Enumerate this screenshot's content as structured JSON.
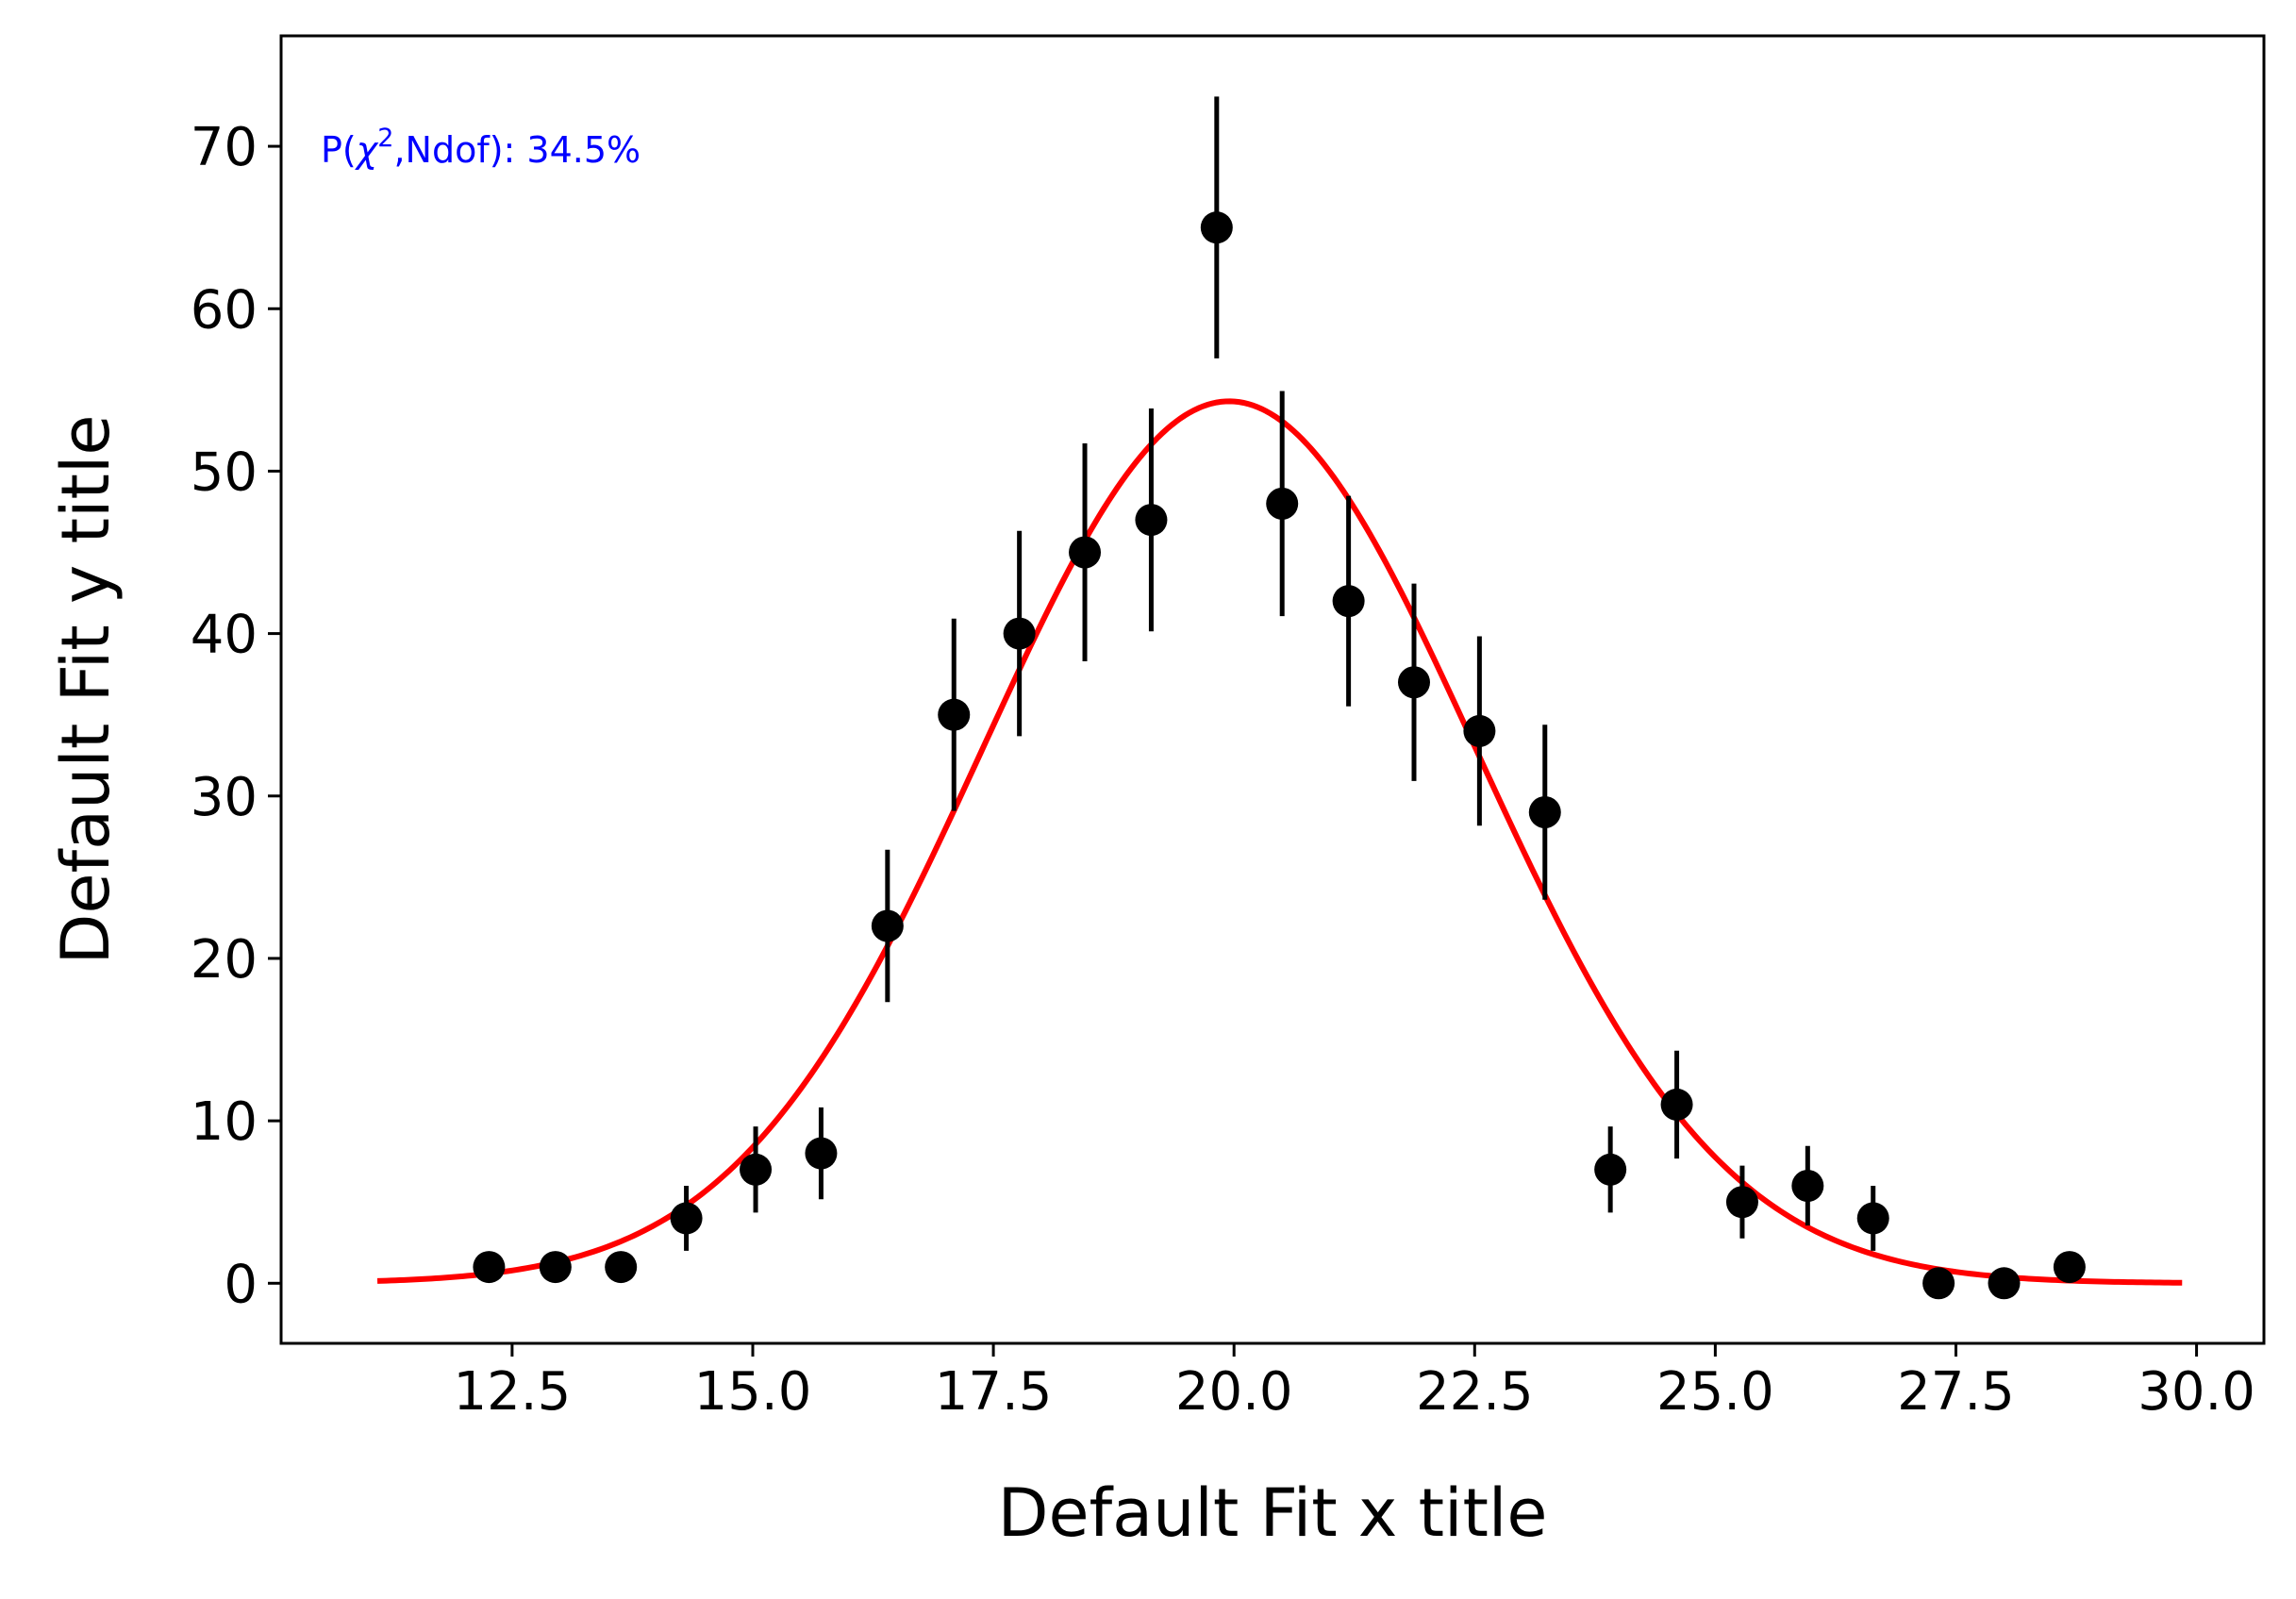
{
  "chart_data": {
    "type": "scatter",
    "title": "",
    "xlabel": "Default Fit x title",
    "ylabel": "Default Fit y title",
    "xlim": [
      10.1,
      30.7
    ],
    "ylim": [
      -3.7,
      76.8
    ],
    "xticks": [
      12.5,
      15.0,
      17.5,
      20.0,
      22.5,
      25.0,
      27.5,
      30.0
    ],
    "xtick_labels": [
      "12.5",
      "15.0",
      "17.5",
      "20.0",
      "22.5",
      "25.0",
      "27.5",
      "30.0"
    ],
    "yticks": [
      0,
      10,
      20,
      30,
      40,
      50,
      60,
      70
    ],
    "ytick_labels": [
      "0",
      "10",
      "20",
      "30",
      "40",
      "50",
      "60",
      "70"
    ],
    "grid": false,
    "legend": null,
    "annotation": {
      "prefix": "P(",
      "chi": "χ",
      "sup": "2",
      "suffix": ",Ndof): 34.5%",
      "color": "#0000ff"
    },
    "series": [
      {
        "kind": "errorbar",
        "color": "#000000",
        "x": [
          12.26,
          12.95,
          13.63,
          14.31,
          15.03,
          15.71,
          16.4,
          17.09,
          17.77,
          18.45,
          19.14,
          19.82,
          20.5,
          21.19,
          21.87,
          22.55,
          23.23,
          23.91,
          24.6,
          25.28,
          25.96,
          26.64,
          27.32,
          28.0,
          28.68
        ],
        "y": [
          1,
          1,
          1,
          4,
          7,
          8,
          22,
          35,
          40,
          45,
          47,
          65,
          48,
          42,
          37,
          34,
          29,
          7,
          11,
          5,
          6,
          4,
          0,
          0,
          1
        ],
        "yerr": [
          0,
          0,
          0,
          2.0,
          2.65,
          2.83,
          4.69,
          5.92,
          6.32,
          6.71,
          6.86,
          8.06,
          6.93,
          6.48,
          6.08,
          5.83,
          5.39,
          2.65,
          3.32,
          2.24,
          2.45,
          2.0,
          0,
          0,
          0
        ]
      },
      {
        "kind": "fit",
        "color": "#ff0000",
        "model": "gaussian",
        "amplitude": 54.3,
        "mean": 19.95,
        "sigma": 2.56,
        "x_range": [
          11.1,
          29.85
        ]
      }
    ]
  }
}
